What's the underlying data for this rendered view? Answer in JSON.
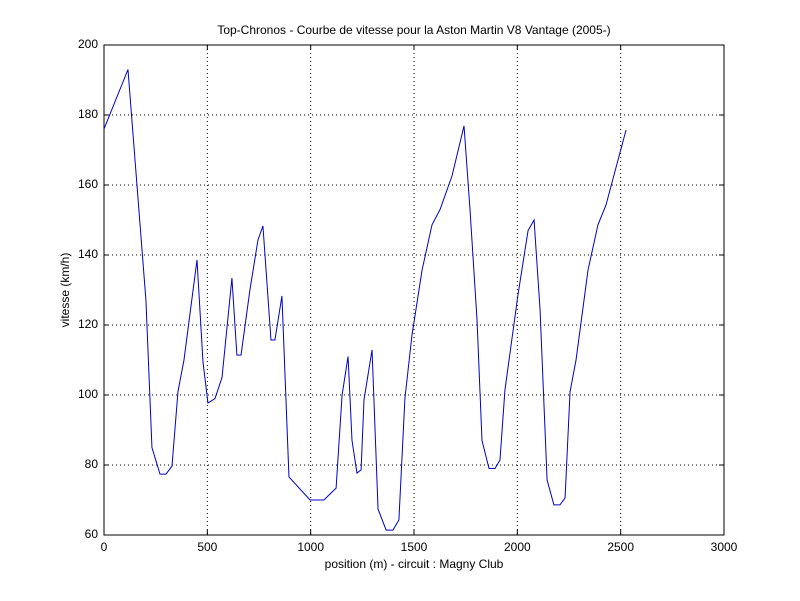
{
  "chart_data": {
    "type": "line",
    "title": "Top-Chronos - Courbe de vitesse pour la Aston Martin V8 Vantage (2005-)",
    "x_label": "position (m) - circuit : Magny Club",
    "y_label": "vitesse (km/h)",
    "x": [
      0,
      116,
      174,
      203,
      232,
      271,
      300,
      329,
      358,
      387,
      450,
      479,
      503,
      537,
      571,
      619,
      643,
      663,
      706,
      745,
      769,
      808,
      827,
      861,
      895,
      997,
      1064,
      1123,
      1152,
      1181,
      1200,
      1224,
      1244,
      1258,
      1297,
      1326,
      1365,
      1398,
      1427,
      1456,
      1490,
      1539,
      1587,
      1626,
      1684,
      1742,
      1771,
      1805,
      1829,
      1863,
      1892,
      1916,
      1940,
      2003,
      2052,
      2081,
      2110,
      2144,
      2177,
      2206,
      2231,
      2255,
      2284,
      2342,
      2390,
      2429,
      2526
    ],
    "series": [
      {
        "color": "#0000cc",
        "values": [
          176,
          193,
          149,
          127,
          85,
          77.4,
          77.4,
          79.7,
          101,
          110,
          138.6,
          109.4,
          97.7,
          99,
          105,
          133.4,
          111.4,
          111.4,
          130,
          144.3,
          148.3,
          115.7,
          115.7,
          128.3,
          76.6,
          70,
          70,
          73.4,
          100,
          111,
          87,
          77.7,
          78.6,
          98.6,
          112.9,
          67.4,
          61.4,
          61.4,
          64.3,
          99,
          117,
          135.7,
          148.6,
          153,
          162.6,
          176.9,
          153,
          121.4,
          87,
          79,
          79,
          81.4,
          101.4,
          128.6,
          147,
          150,
          124.3,
          75.7,
          68.6,
          68.6,
          70.6,
          100.9,
          110,
          135.7,
          148.6,
          154.3,
          175.7
        ]
      }
    ],
    "xlim": [
      0,
      3000
    ],
    "xticks": [
      0,
      500,
      1000,
      1500,
      2000,
      2500,
      3000
    ],
    "ylim": [
      60,
      200
    ],
    "yticks": [
      60,
      80,
      100,
      120,
      140,
      160,
      180,
      200
    ],
    "grid": true
  }
}
